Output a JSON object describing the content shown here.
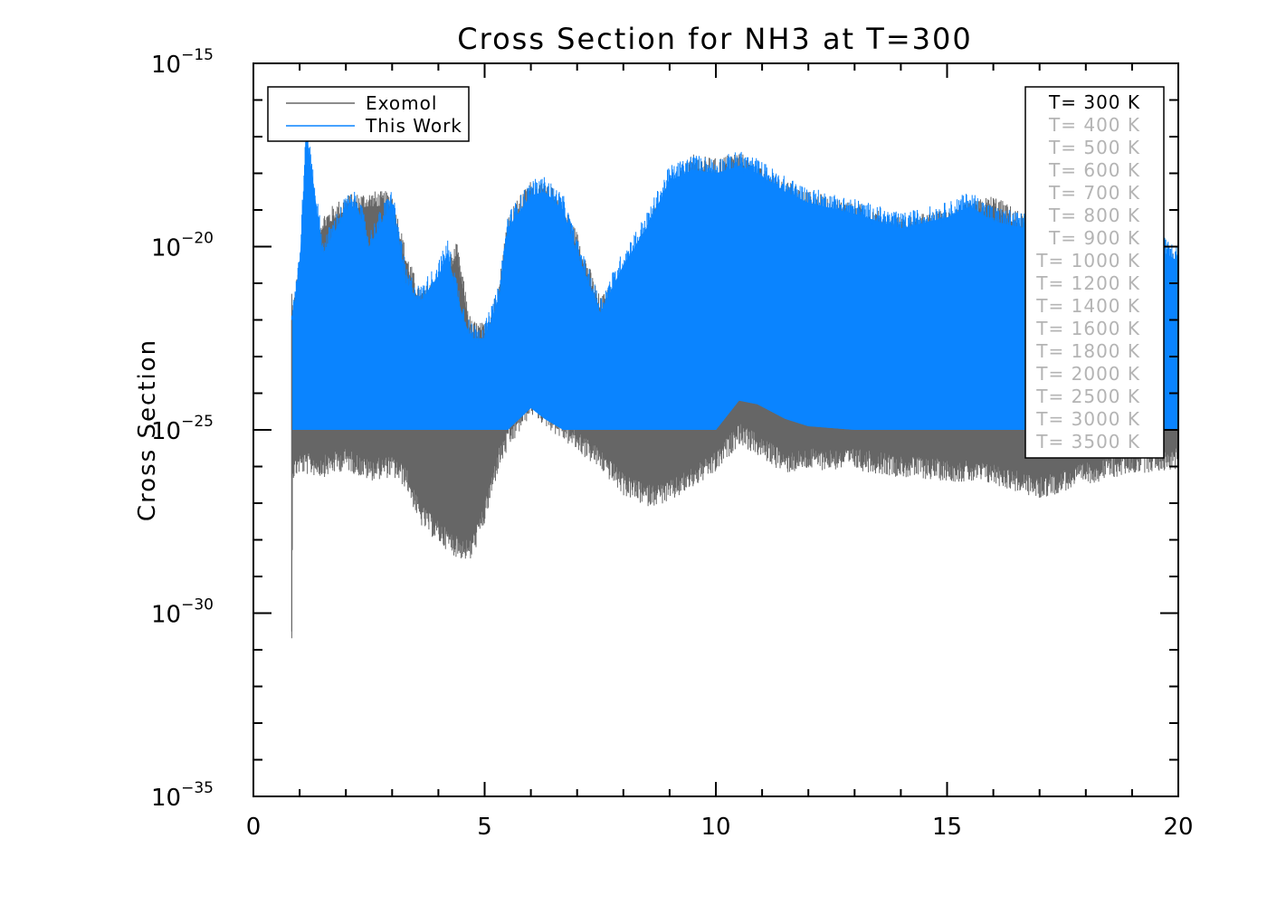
{
  "chart_data": {
    "type": "line",
    "title": "Cross Section for NH3 at T=300",
    "xlabel": "",
    "ylabel": "Cross Section",
    "xlim": [
      0,
      20
    ],
    "ylim_log10": [
      -35,
      -15
    ],
    "x_ticks": [
      0,
      5,
      10,
      15,
      20
    ],
    "x_tick_labels": [
      "0",
      "5",
      "10",
      "15",
      "20"
    ],
    "y_ticks": [
      -35,
      -30,
      -25,
      -20,
      -15
    ],
    "y_tick_labels": [
      {
        "base": "10",
        "exp": "−35"
      },
      {
        "base": "10",
        "exp": "−30"
      },
      {
        "base": "10",
        "exp": "−25"
      },
      {
        "base": "10",
        "exp": "−20"
      },
      {
        "base": "10",
        "exp": "−15"
      }
    ],
    "legend": {
      "position": "top-left",
      "entries": [
        {
          "name": "Exomol",
          "color": "#666666"
        },
        {
          "name": "This Work",
          "color": "#0a84ff"
        }
      ]
    },
    "temperature_legend": {
      "position": "top-right",
      "active": "T= 300 K",
      "entries": [
        "T= 300 K",
        "T= 400 K",
        "T= 500 K",
        "T= 600 K",
        "T= 700 K",
        "T= 800 K",
        "T= 900 K",
        "T= 1000 K",
        "T= 1200 K",
        "T= 1400 K",
        "T= 1600 K",
        "T= 1800 K",
        "T= 2000 K",
        "T= 2500 K",
        "T= 3000 K",
        "T= 3500 K"
      ]
    },
    "series": [
      {
        "name": "Exomol",
        "color": "#666666",
        "envelope_log10": {
          "x": [
            0.83,
            0.85,
            1.0,
            1.5,
            2.0,
            2.5,
            3.0,
            3.3,
            3.6,
            4.0,
            4.4,
            4.7,
            5.0,
            5.3,
            5.5,
            6.0,
            6.5,
            7.0,
            7.5,
            8.0,
            8.5,
            9.0,
            9.5,
            10.0,
            10.5,
            11.0,
            11.5,
            12.0,
            13.0,
            14.0,
            15.0,
            16.0,
            17.0,
            18.0,
            19.0,
            20.0
          ],
          "upper": [
            -21.5,
            -22.0,
            -20.7,
            -19.5,
            -19.0,
            -18.9,
            -18.9,
            -20.5,
            -21.6,
            -21.2,
            -20.3,
            -22.4,
            -22.5,
            -21.5,
            -19.5,
            -18.6,
            -18.8,
            -20.0,
            -21.8,
            -21.0,
            -19.8,
            -18.6,
            -17.9,
            -18.0,
            -17.8,
            -18.3,
            -18.6,
            -18.9,
            -19.2,
            -19.6,
            -19.4,
            -19.0,
            -19.8,
            -19.8,
            -20.4,
            -20.6
          ],
          "lower": [
            -30.5,
            -25.8,
            -25.6,
            -25.7,
            -25.5,
            -25.8,
            -25.7,
            -26.0,
            -27.0,
            -27.5,
            -27.9,
            -28.0,
            -27.0,
            -25.5,
            -25.0,
            -24.0,
            -24.5,
            -25.0,
            -25.5,
            -26.2,
            -26.5,
            -26.4,
            -26.0,
            -25.6,
            -24.8,
            -25.2,
            -25.6,
            -25.5,
            -25.5,
            -25.7,
            -25.8,
            -25.9,
            -26.3,
            -25.9,
            -25.6,
            -25.5
          ]
        }
      },
      {
        "name": "This Work",
        "color": "#0a84ff",
        "envelope_log10": {
          "x": [
            0.83,
            1.0,
            1.15,
            1.5,
            2.0,
            2.25,
            2.5,
            3.0,
            3.3,
            3.6,
            4.0,
            4.2,
            4.5,
            4.7,
            5.0,
            5.3,
            5.5,
            6.0,
            6.3,
            6.7,
            7.0,
            7.5,
            8.0,
            8.5,
            9.0,
            9.5,
            10.0,
            10.5,
            10.9,
            11.5,
            12.0,
            13.0,
            14.0,
            15.0,
            15.5,
            16.0,
            17.0,
            18.0,
            19.0,
            19.5,
            20.0
          ],
          "upper": [
            -22.0,
            -20.5,
            -16.9,
            -20.2,
            -19.0,
            -18.9,
            -20.0,
            -18.8,
            -21.0,
            -21.5,
            -20.8,
            -20.2,
            -21.8,
            -22.5,
            -22.5,
            -21.5,
            -19.5,
            -18.6,
            -18.5,
            -19.0,
            -20.2,
            -21.8,
            -20.5,
            -19.5,
            -18.2,
            -17.9,
            -18.0,
            -17.8,
            -18.0,
            -18.5,
            -18.8,
            -19.1,
            -19.5,
            -19.2,
            -18.9,
            -19.3,
            -19.6,
            -19.8,
            -20.1,
            -20.0,
            -20.4
          ],
          "lower": [
            -25.0,
            -25.0,
            -25.0,
            -25.0,
            -25.0,
            -25.0,
            -25.0,
            -25.0,
            -25.0,
            -25.0,
            -25.0,
            -25.0,
            -25.0,
            -25.0,
            -25.0,
            -25.0,
            -25.0,
            -24.4,
            -24.7,
            -25.0,
            -25.0,
            -25.0,
            -25.0,
            -25.0,
            -25.0,
            -25.0,
            -25.0,
            -24.2,
            -24.3,
            -24.7,
            -24.9,
            -25.0,
            -25.0,
            -25.0,
            -25.0,
            -25.0,
            -25.0,
            -25.0,
            -25.0,
            -25.0,
            -25.0
          ]
        }
      }
    ]
  }
}
